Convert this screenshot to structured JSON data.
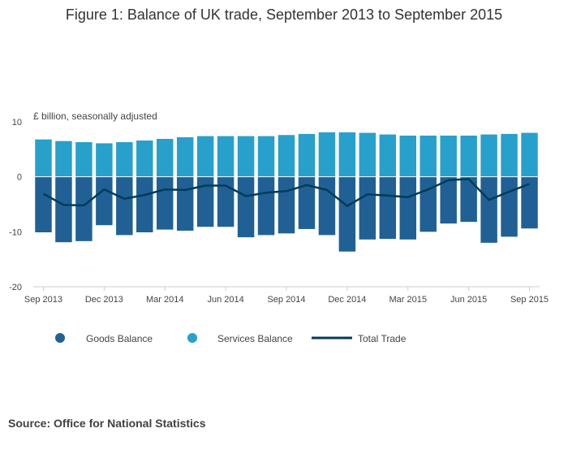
{
  "chart_data": {
    "type": "bar",
    "title": "Figure 1: Balance of UK trade, September 2013 to September 2015",
    "unit_label": "£ billion, seasonally adjusted",
    "ylim": [
      -20,
      10
    ],
    "y_ticks": [
      10,
      0,
      -10,
      -20
    ],
    "y_tick_labels": [
      "10",
      "0",
      "-10",
      "-20"
    ],
    "categories": [
      "Sep 2013",
      "Oct 2013",
      "Nov 2013",
      "Dec 2013",
      "Jan 2014",
      "Feb 2014",
      "Mar 2014",
      "Apr 2014",
      "May 2014",
      "Jun 2014",
      "Jul 2014",
      "Aug 2014",
      "Sep 2014",
      "Oct 2014",
      "Nov 2014",
      "Dec 2014",
      "Jan 2015",
      "Feb 2015",
      "Mar 2015",
      "Apr 2015",
      "May 2015",
      "Jun 2015",
      "Jul 2015",
      "Aug 2015",
      "Sep 2015"
    ],
    "x_tick_labels": [
      {
        "index": 0,
        "label": "Sep 2013"
      },
      {
        "index": 3,
        "label": "Dec 2013"
      },
      {
        "index": 6,
        "label": "Mar 2014"
      },
      {
        "index": 9,
        "label": "Jun 2014"
      },
      {
        "index": 12,
        "label": "Sep 2014"
      },
      {
        "index": 15,
        "label": "Dec 2014"
      },
      {
        "index": 18,
        "label": "Mar 2015"
      },
      {
        "index": 21,
        "label": "Jun 2015"
      },
      {
        "index": 24,
        "label": "Sep 2015"
      }
    ],
    "series": [
      {
        "name": "Goods Balance",
        "type": "bar",
        "color": "#206095",
        "values": [
          -10.1,
          -11.9,
          -11.7,
          -8.8,
          -10.6,
          -10.1,
          -9.6,
          -9.8,
          -9.1,
          -9.1,
          -11.0,
          -10.6,
          -10.3,
          -9.5,
          -10.6,
          -13.6,
          -11.4,
          -11.3,
          -11.4,
          -10.0,
          -8.5,
          -8.2,
          -12.0,
          -10.9,
          -9.4
        ]
      },
      {
        "name": "Services Balance",
        "type": "bar",
        "color": "#27a0cc",
        "values": [
          6.8,
          6.5,
          6.3,
          6.1,
          6.3,
          6.6,
          6.9,
          7.2,
          7.4,
          7.4,
          7.4,
          7.4,
          7.6,
          7.8,
          8.1,
          8.1,
          8.0,
          7.7,
          7.5,
          7.5,
          7.5,
          7.5,
          7.7,
          7.8,
          8.0
        ]
      },
      {
        "name": "Total Trade",
        "type": "line",
        "color": "#003c57",
        "values": [
          -3.1,
          -5.1,
          -5.2,
          -2.3,
          -4.0,
          -3.3,
          -2.3,
          -2.4,
          -1.6,
          -1.6,
          -3.5,
          -2.9,
          -2.6,
          -1.5,
          -2.4,
          -5.3,
          -3.2,
          -3.4,
          -3.7,
          -2.3,
          -0.6,
          -0.4,
          -4.2,
          -2.7,
          -1.3
        ]
      }
    ],
    "legend_position": "bottom",
    "grid": false
  },
  "source_text": "Source: Office for National Statistics"
}
